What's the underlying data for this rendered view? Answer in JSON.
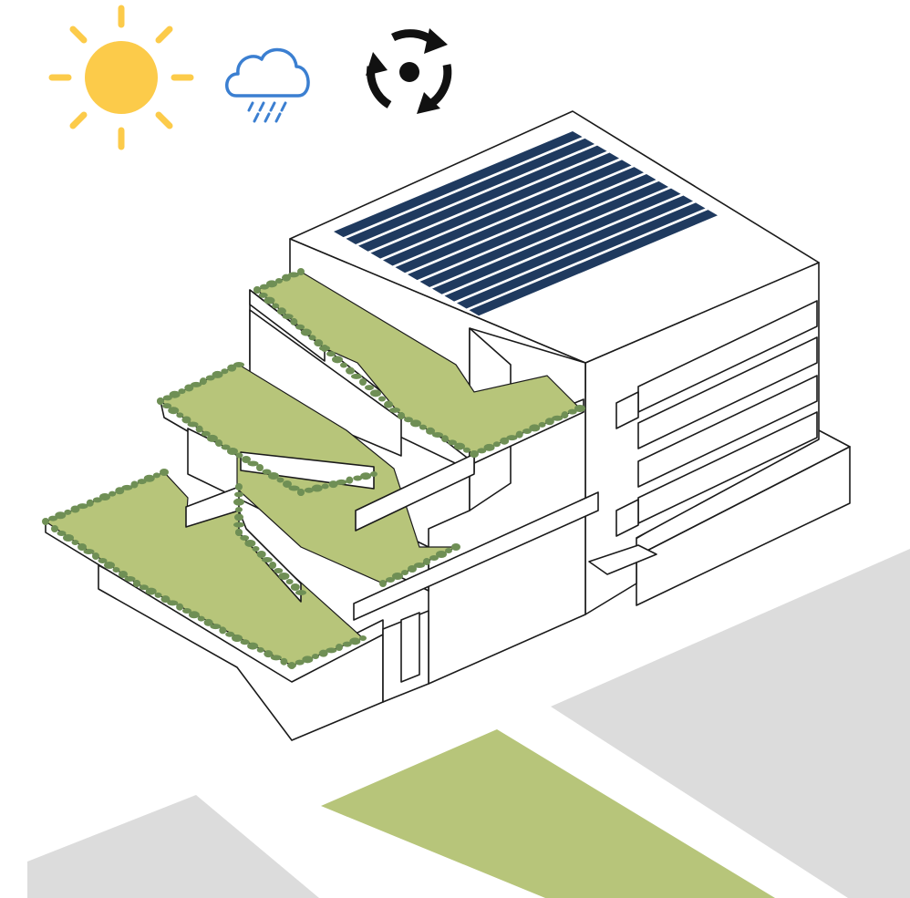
{
  "colors": {
    "sun": "#fccb4a",
    "cloud": "#3b7fd1",
    "cycle": "#111111",
    "solar": "#1f3a5f",
    "green": "#b7c57a",
    "shrub": "#6f8f55",
    "ground": "#dcdcdc",
    "outline": "#1a1a1a"
  },
  "icons": [
    "sun-icon",
    "rain-cloud-icon",
    "recycle-arrows-icon"
  ]
}
